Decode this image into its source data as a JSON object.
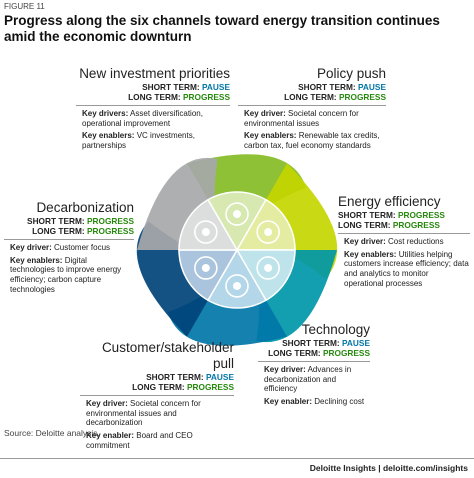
{
  "figure_label": "FIGURE 11",
  "title": "Progress along the six channels toward energy transition continues amid the economic downturn",
  "channels": [
    {
      "name": "New investment priorities",
      "short_term": {
        "label": "SHORT TERM:",
        "status": "PAUSE",
        "color": "#0076a8"
      },
      "long_term": {
        "label": "LONG TERM:",
        "status": "PROGRESS",
        "color": "#26890d"
      },
      "driver": {
        "label": "Key drivers:",
        "text": "Asset diversification, operational improvement"
      },
      "enabler": {
        "label": "Key enablers:",
        "text": "VC investments, partnerships"
      }
    },
    {
      "name": "Policy push",
      "short_term": {
        "label": "SHORT TERM:",
        "status": "PAUSE",
        "color": "#0076a8"
      },
      "long_term": {
        "label": "LONG TERM:",
        "status": "PROGRESS",
        "color": "#26890d"
      },
      "driver": {
        "label": "Key driver:",
        "text": "Societal concern for environmental issues"
      },
      "enabler": {
        "label": "Key enablers:",
        "text": "Renewable tax credits, carbon tax, fuel economy standards"
      }
    },
    {
      "name": "Energy efficiency",
      "short_term": {
        "label": "SHORT TERM:",
        "status": "PROGRESS",
        "color": "#26890d"
      },
      "long_term": {
        "label": "LONG TERM:",
        "status": "PROGRESS",
        "color": "#26890d"
      },
      "driver": {
        "label": "Key driver:",
        "text": "Cost reductions"
      },
      "enabler": {
        "label": "Key enablers:",
        "text": "Utilities helping customers increase efficiency; data and analytics to monitor operational processes"
      }
    },
    {
      "name": "Technology",
      "short_term": {
        "label": "SHORT TERM:",
        "status": "PAUSE",
        "color": "#0076a8"
      },
      "long_term": {
        "label": "LONG TERM:",
        "status": "PROGRESS",
        "color": "#26890d"
      },
      "driver": {
        "label": "Key driver:",
        "text": "Advances in decarbonization and efficiency"
      },
      "enabler": {
        "label": "Key enabler:",
        "text": "Declining cost"
      }
    },
    {
      "name": "Customer/stakeholder pull",
      "short_term": {
        "label": "SHORT TERM:",
        "status": "PAUSE",
        "color": "#0076a8"
      },
      "long_term": {
        "label": "LONG TERM:",
        "status": "PROGRESS",
        "color": "#26890d"
      },
      "driver": {
        "label": "Key driver:",
        "text": "Societal concern for environmental issues and decarbonization"
      },
      "enabler": {
        "label": "Key enabler:",
        "text": "Board and CEO commitment"
      }
    },
    {
      "name": "Decarbonization",
      "short_term": {
        "label": "SHORT TERM:",
        "status": "PROGRESS",
        "color": "#26890d"
      },
      "long_term": {
        "label": "LONG TERM:",
        "status": "PROGRESS",
        "color": "#26890d"
      },
      "driver": {
        "label": "Key driver:",
        "text": "Customer focus"
      },
      "enabler": {
        "label": "Key enablers:",
        "text": "Digital technologies to improve energy efficiency; carbon capture technologies"
      }
    }
  ],
  "source": "Source: Deloitte analysis.",
  "footer": "Deloitte Insights | deloitte.com/insights"
}
